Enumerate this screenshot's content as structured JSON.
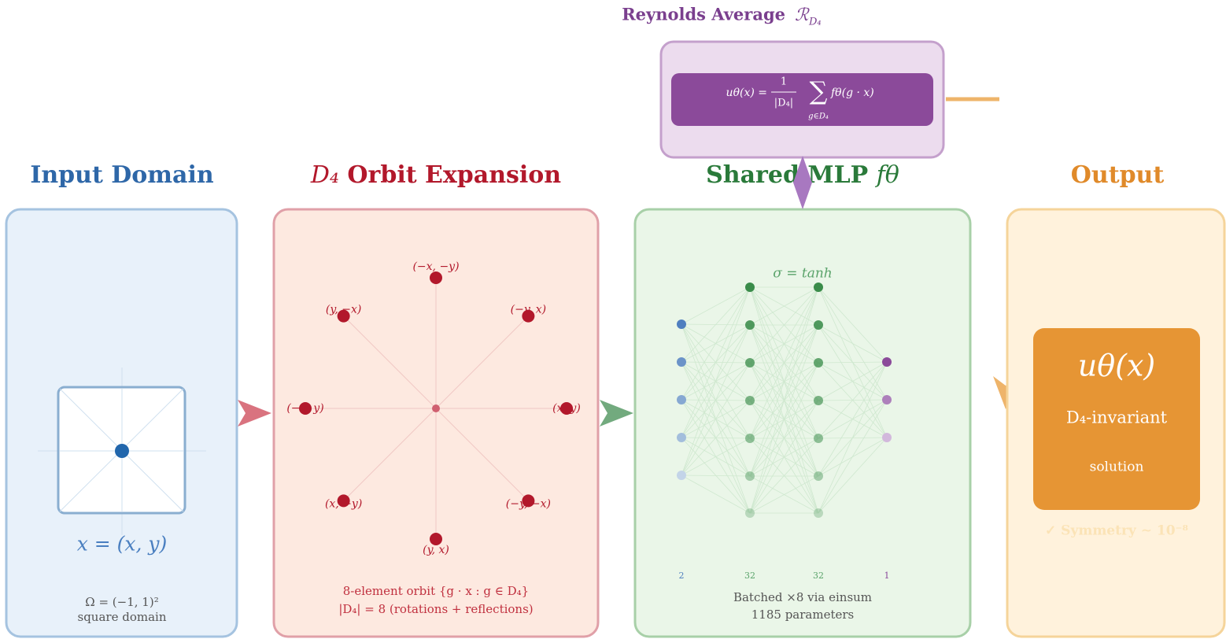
{
  "reynolds": {
    "title": "Reynolds Average",
    "symbol": "ℛ",
    "symbol_sub": "D₄",
    "formula_lhs": "uθ(x) =",
    "formula_frac_num": "1",
    "formula_frac_den": "|D₄|",
    "formula_sum": "∑",
    "formula_sum_sub": "g∈D₄",
    "formula_rhs": "fθ(g · x)"
  },
  "input": {
    "title": "Input Domain",
    "point_label": "x = (x, y)",
    "caption": [
      "Ω = (−1, 1)²",
      "square domain"
    ]
  },
  "orbit": {
    "title_symbol": "D₄",
    "title": "Orbit Expansion",
    "points": [
      "(x, y)",
      "(−y, x)",
      "(−x, −y)",
      "(y, −x)",
      "(−x, y)",
      "(x, −y)",
      "(y, x)",
      "(−y, −x)"
    ],
    "caption": [
      "8-element orbit {g · x : g ∈ D₄}",
      "|D₄| = 8 (rotations + reflections)"
    ]
  },
  "mlp": {
    "title": "Shared MLP",
    "title_symbol": "fθ",
    "activation": "σ = tanh",
    "layers": [
      "2",
      "32",
      "32",
      "1"
    ],
    "caption": [
      "Batched ×8 via einsum",
      "1185 parameters"
    ]
  },
  "output": {
    "title": "Output",
    "function": "uθ(x)",
    "invariant": "D₄-invariant",
    "solution": "solution",
    "check": "✓  Symmetry ∼ 10⁻⁸"
  }
}
